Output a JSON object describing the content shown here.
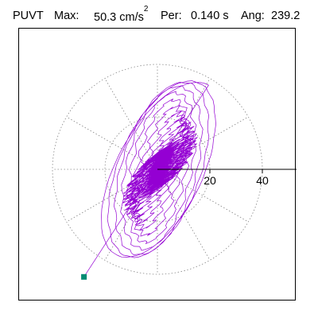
{
  "header": {
    "title": "PUVT",
    "max_label": "Max:",
    "max_value": "50.3",
    "max_unit": "cm/s",
    "max_unit_exp": "2",
    "per_label": "Per:",
    "per_value": "0.140 s",
    "ang_label": "Ang:",
    "ang_value": "239.2"
  },
  "chart_data": {
    "type": "line",
    "plot_style": "polar hodograph (particle motion)",
    "radial_ticks": [
      "20",
      "40"
    ],
    "radial_tick_values": [
      20,
      40
    ],
    "rmax": 40,
    "grid": true,
    "grid_style": "dotted",
    "spokes_deg": [
      0,
      30,
      60,
      90,
      120,
      150,
      180,
      210,
      240,
      270,
      300,
      330
    ],
    "axis_line_angle_deg": 0,
    "direction_angle_deg": 239.2,
    "max_amplitude": 50.3,
    "series_color": "#9400d3",
    "end_marker_color": "#008b73",
    "end_point": [
      -28,
      -41
    ]
  }
}
